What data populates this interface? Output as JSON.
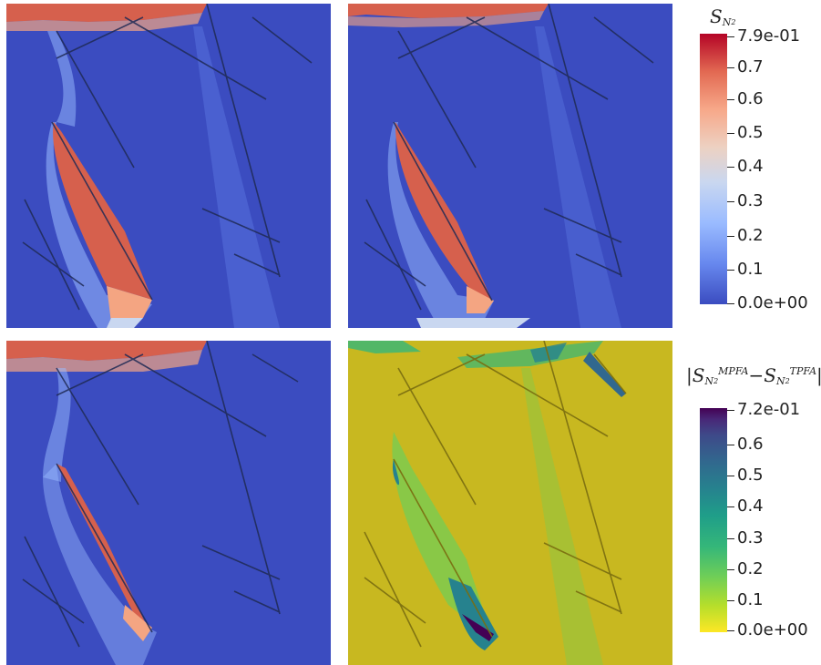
{
  "colorbar_saturation": {
    "title_symbol": "S",
    "title_subscript": "N",
    "title_subsubscript": "2",
    "max_label": "7.9e-01",
    "min_label": "0.0e+00",
    "ticks": [
      "0.7",
      "0.6",
      "0.5",
      "0.4",
      "0.3",
      "0.2",
      "0.1"
    ],
    "colormap": "coolwarm"
  },
  "colorbar_difference": {
    "title_open": "|S",
    "title_sup_a": "MPFA",
    "title_sub": "N",
    "title_subsub": "2",
    "title_minus": "−S",
    "title_sup_b": "TPFA",
    "title_close": "|",
    "max_label": "7.2e-01",
    "min_label": "0.0e+00",
    "ticks": [
      "0.6",
      "0.5",
      "0.4",
      "0.3",
      "0.2",
      "0.1"
    ],
    "colormap": "viridis"
  },
  "colors": {
    "background_saturation": "#3b4cc0",
    "background_difference": "#c8b820",
    "fracture_line": "#1f2a55",
    "plume_high": "#d6604d"
  }
}
